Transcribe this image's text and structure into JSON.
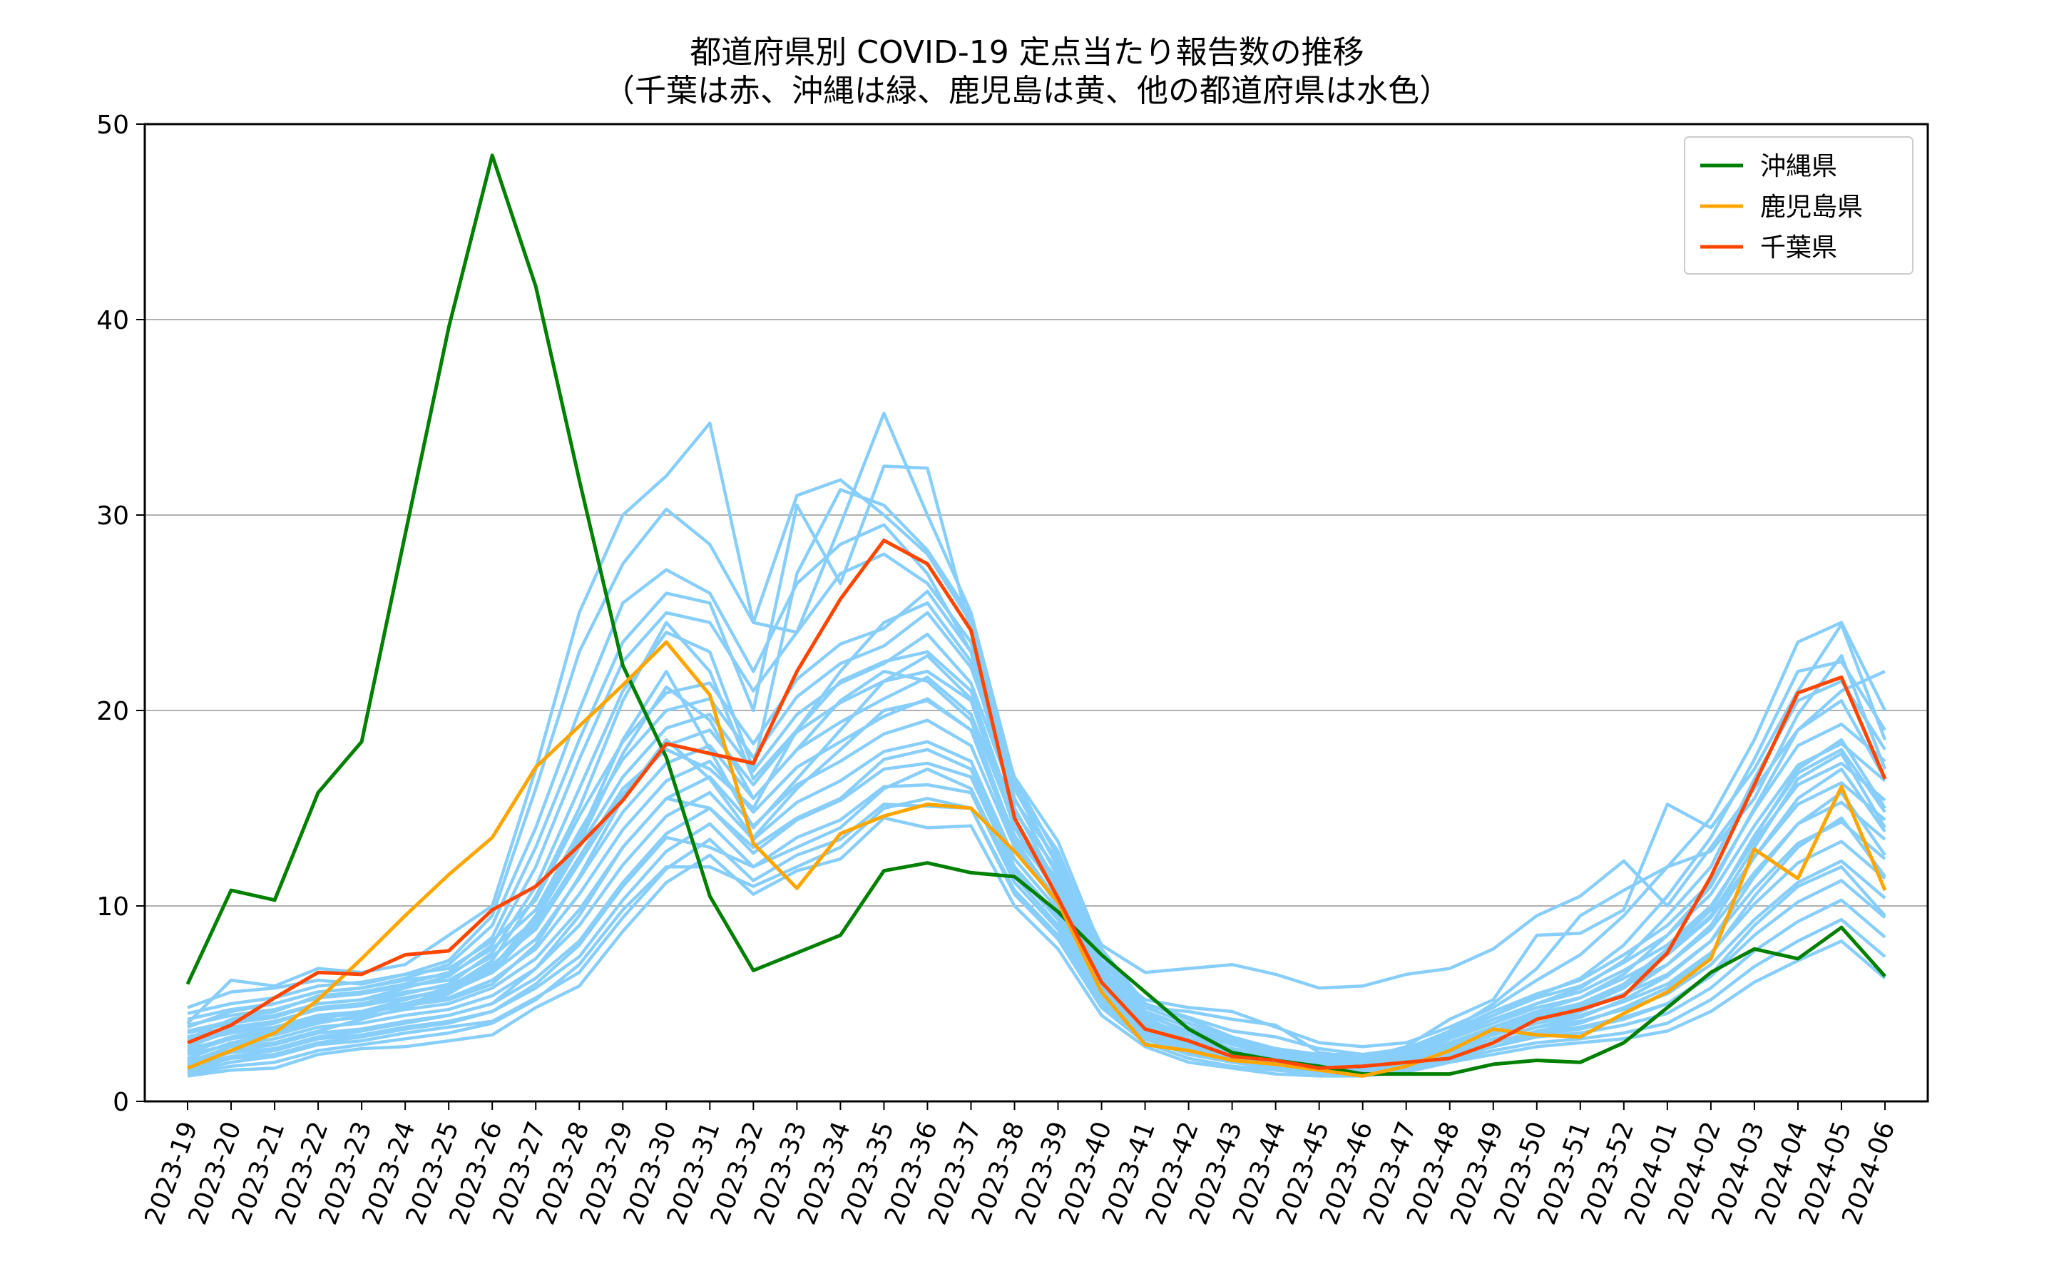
{
  "chart_data": {
    "type": "line",
    "title": "都道府県別 COVID-19 定点当たり報告数の推移",
    "subtitle": "（千葉は赤、沖縄は緑、鹿児島は黄、他の都道府県は水色）",
    "xlabel": "",
    "ylabel": "",
    "ylim": [
      0,
      50
    ],
    "yticks": [
      0,
      10,
      20,
      30,
      40,
      50
    ],
    "grid": "y",
    "legend_position": "top-right",
    "x": [
      "2023-19",
      "2023-20",
      "2023-21",
      "2023-22",
      "2023-23",
      "2023-24",
      "2023-25",
      "2023-26",
      "2023-27",
      "2023-28",
      "2023-29",
      "2023-30",
      "2023-31",
      "2023-32",
      "2023-33",
      "2023-34",
      "2023-35",
      "2023-36",
      "2023-37",
      "2023-38",
      "2023-39",
      "2023-40",
      "2023-41",
      "2023-42",
      "2023-43",
      "2023-44",
      "2023-45",
      "2023-46",
      "2023-47",
      "2023-48",
      "2023-49",
      "2023-50",
      "2023-51",
      "2023-52",
      "2024-01",
      "2024-02",
      "2024-03",
      "2024-04",
      "2024-05",
      "2024-06"
    ],
    "colors": {
      "okinawa": "#008000",
      "kagoshima": "#ffa500",
      "chiba": "#ff4500",
      "other": "#87cefa"
    },
    "highlighted_series": [
      {
        "name": "沖縄県",
        "color": "#008000",
        "values": [
          6.0,
          10.8,
          10.3,
          15.8,
          18.4,
          29.0,
          39.6,
          48.4,
          41.7,
          31.8,
          22.3,
          17.6,
          10.5,
          6.7,
          7.6,
          8.5,
          11.8,
          12.2,
          11.7,
          11.5,
          9.7,
          7.5,
          5.6,
          3.7,
          2.5,
          2.1,
          1.8,
          1.4,
          1.4,
          1.4,
          1.9,
          2.1,
          2.0,
          3.0,
          4.8,
          6.6,
          7.8,
          7.3,
          8.9,
          6.4
        ]
      },
      {
        "name": "鹿児島県",
        "color": "#ffa500",
        "values": [
          1.7,
          2.6,
          3.5,
          5.2,
          7.3,
          9.5,
          11.6,
          13.5,
          17.1,
          19.2,
          21.3,
          23.5,
          20.8,
          13.2,
          10.9,
          13.7,
          14.6,
          15.2,
          15.0,
          12.8,
          10.2,
          5.6,
          2.9,
          2.6,
          2.1,
          1.9,
          1.6,
          1.3,
          1.8,
          2.6,
          3.7,
          3.4,
          3.3,
          4.5,
          5.6,
          7.3,
          12.9,
          11.4,
          16.1,
          10.8
        ]
      },
      {
        "name": "千葉県",
        "color": "#ff4500",
        "values": [
          3.0,
          3.9,
          5.3,
          6.6,
          6.5,
          7.5,
          7.7,
          9.8,
          11.0,
          13.1,
          15.4,
          18.3,
          17.8,
          17.3,
          22.0,
          25.7,
          28.7,
          27.5,
          24.1,
          14.5,
          10.4,
          6.1,
          3.7,
          3.1,
          2.3,
          2.1,
          1.7,
          1.8,
          2.0,
          2.2,
          3.0,
          4.2,
          4.7,
          5.4,
          7.6,
          11.5,
          16.2,
          20.9,
          21.7,
          16.5
        ]
      }
    ],
    "other_prefectures": [
      [
        1.3,
        1.6,
        1.7,
        2.4,
        2.7,
        2.8,
        3.1,
        3.4,
        4.8,
        5.9,
        8.7,
        11.2,
        12.6,
        10.6,
        11.8,
        12.4,
        14.5,
        14.0,
        14.1,
        10.0,
        7.8,
        4.4,
        2.8,
        2.0,
        1.7,
        1.4,
        1.3,
        1.3,
        1.5,
        2.0,
        2.4,
        2.8,
        3.0,
        3.2,
        3.6,
        4.6,
        6.1,
        7.2,
        8.2,
        6.3
      ],
      [
        1.5,
        2.0,
        2.3,
        2.9,
        3.1,
        3.5,
        3.8,
        4.1,
        5.3,
        6.6,
        9.4,
        11.9,
        13.4,
        11.3,
        12.6,
        13.4,
        15.2,
        15.1,
        15.0,
        10.6,
        8.3,
        4.8,
        3.0,
        2.2,
        1.8,
        1.6,
        1.4,
        1.4,
        1.6,
        2.1,
        2.6,
        3.0,
        3.2,
        3.5,
        4.0,
        5.2,
        6.9,
        8.2,
        9.3,
        7.4
      ],
      [
        1.8,
        2.3,
        2.6,
        3.2,
        3.4,
        3.8,
        4.1,
        4.6,
        5.8,
        7.4,
        10.3,
        12.8,
        14.2,
        12.0,
        13.5,
        14.4,
        16.1,
        16.2,
        15.8,
        11.2,
        8.8,
        5.1,
        3.2,
        2.4,
        2.0,
        1.7,
        1.5,
        1.5,
        1.7,
        2.3,
        2.8,
        3.3,
        3.5,
        3.9,
        4.5,
        5.8,
        7.7,
        9.2,
        10.3,
        8.4
      ],
      [
        2.1,
        2.6,
        2.9,
        3.5,
        3.7,
        4.1,
        4.4,
        5.0,
        6.3,
        8.2,
        11.2,
        13.7,
        15.0,
        12.7,
        14.4,
        15.4,
        17.0,
        17.3,
        16.6,
        11.8,
        9.3,
        5.4,
        3.4,
        2.6,
        2.1,
        1.8,
        1.6,
        1.6,
        1.8,
        2.4,
        3.0,
        3.5,
        3.8,
        4.3,
        5.0,
        6.4,
        8.5,
        10.2,
        11.3,
        9.4
      ],
      [
        2.4,
        2.9,
        3.2,
        3.8,
        4.0,
        4.4,
        4.7,
        5.4,
        6.8,
        9.0,
        12.1,
        14.6,
        15.8,
        13.4,
        15.3,
        16.4,
        17.9,
        18.4,
        17.4,
        12.4,
        9.8,
        5.7,
        3.6,
        2.8,
        2.3,
        1.9,
        1.7,
        1.7,
        1.9,
        2.6,
        3.2,
        3.8,
        4.1,
        4.7,
        5.5,
        7.0,
        9.3,
        11.2,
        12.3,
        10.4
      ],
      [
        2.7,
        3.2,
        3.5,
        4.1,
        4.3,
        4.7,
        5.0,
        5.8,
        7.3,
        9.8,
        13.0,
        15.5,
        16.6,
        14.1,
        16.2,
        17.4,
        18.8,
        19.5,
        18.2,
        13.0,
        10.3,
        6.0,
        3.8,
        3.0,
        2.4,
        2.0,
        1.8,
        1.8,
        2.0,
        2.7,
        3.4,
        4.0,
        4.4,
        5.1,
        6.0,
        7.6,
        10.1,
        12.2,
        13.3,
        11.4
      ],
      [
        3.0,
        3.5,
        3.8,
        4.4,
        4.6,
        5.0,
        5.3,
        6.2,
        7.8,
        10.6,
        13.9,
        16.4,
        17.4,
        14.8,
        17.1,
        18.4,
        19.7,
        20.6,
        19.0,
        13.6,
        10.8,
        6.3,
        4.0,
        3.2,
        2.6,
        2.2,
        1.9,
        1.9,
        2.2,
        2.9,
        3.6,
        4.3,
        4.7,
        5.5,
        6.5,
        8.2,
        10.9,
        13.2,
        14.3,
        12.4
      ],
      [
        3.3,
        3.8,
        4.1,
        4.7,
        4.9,
        5.3,
        5.6,
        6.6,
        8.3,
        11.4,
        14.8,
        17.3,
        18.2,
        15.5,
        18.0,
        19.4,
        20.6,
        21.7,
        19.8,
        14.2,
        11.3,
        6.6,
        4.2,
        3.4,
        2.7,
        2.3,
        2.0,
        2.0,
        2.3,
        3.0,
        3.8,
        4.5,
        5.0,
        5.9,
        7.0,
        8.8,
        11.7,
        14.2,
        15.3,
        13.4
      ],
      [
        3.6,
        4.1,
        4.4,
        5.0,
        5.2,
        5.6,
        5.9,
        7.0,
        8.8,
        12.2,
        15.7,
        18.2,
        19.0,
        16.2,
        18.9,
        20.4,
        21.5,
        22.8,
        20.6,
        14.8,
        11.8,
        6.9,
        4.4,
        3.6,
        2.9,
        2.4,
        2.1,
        2.1,
        2.4,
        3.2,
        4.0,
        4.8,
        5.3,
        6.3,
        7.5,
        9.4,
        12.5,
        15.2,
        16.3,
        14.4
      ],
      [
        3.9,
        4.4,
        4.7,
        5.3,
        5.5,
        5.9,
        6.2,
        7.4,
        9.3,
        13.0,
        16.6,
        19.1,
        19.8,
        16.9,
        19.8,
        21.4,
        22.4,
        23.9,
        21.4,
        15.4,
        12.3,
        7.2,
        4.6,
        3.8,
        3.0,
        2.5,
        2.2,
        2.2,
        2.5,
        3.3,
        4.2,
        5.0,
        5.6,
        6.7,
        8.0,
        10.0,
        13.3,
        16.2,
        17.3,
        15.4
      ],
      [
        4.2,
        4.7,
        5.0,
        5.6,
        5.8,
        6.2,
        6.5,
        7.8,
        9.8,
        13.8,
        17.5,
        20.0,
        20.6,
        17.6,
        20.7,
        22.4,
        23.3,
        25.0,
        22.2,
        16.0,
        12.8,
        7.5,
        4.8,
        4.0,
        3.2,
        2.6,
        2.3,
        2.3,
        2.6,
        3.5,
        4.4,
        5.3,
        5.9,
        7.1,
        8.5,
        10.6,
        14.1,
        17.2,
        18.3,
        16.4
      ],
      [
        4.5,
        5.0,
        5.3,
        5.9,
        6.1,
        6.5,
        6.8,
        8.2,
        10.3,
        14.6,
        18.4,
        20.9,
        21.4,
        18.3,
        21.6,
        23.4,
        24.2,
        26.1,
        23.0,
        16.6,
        13.3,
        7.8,
        5.0,
        4.2,
        3.3,
        2.7,
        2.4,
        2.4,
        2.7,
        3.6,
        4.6,
        5.5,
        6.2,
        7.5,
        9.0,
        11.2,
        14.9,
        18.2,
        19.3,
        17.4
      ],
      [
        2.0,
        2.8,
        3.0,
        3.6,
        4.2,
        4.8,
        5.5,
        6.8,
        9.5,
        13.5,
        18.5,
        22.0,
        18.0,
        14.0,
        16.5,
        19.0,
        21.5,
        22.0,
        20.5,
        14.0,
        10.5,
        6.0,
        4.0,
        3.0,
        2.5,
        2.2,
        1.9,
        1.8,
        2.1,
        2.8,
        3.5,
        4.2,
        4.8,
        5.8,
        7.5,
        9.5,
        13.0,
        16.5,
        17.8,
        14.0
      ],
      [
        2.5,
        3.2,
        3.6,
        4.2,
        4.6,
        5.2,
        5.8,
        7.2,
        10.5,
        15.0,
        20.5,
        24.5,
        22.0,
        16.5,
        19.0,
        22.0,
        24.5,
        25.5,
        22.5,
        15.0,
        11.0,
        6.4,
        4.3,
        3.2,
        2.7,
        2.3,
        2.0,
        1.9,
        2.2,
        3.0,
        3.8,
        4.6,
        5.3,
        6.5,
        8.5,
        11.0,
        15.0,
        19.0,
        20.5,
        16.5
      ],
      [
        3.5,
        4.0,
        4.3,
        5.0,
        5.2,
        5.8,
        6.4,
        8.0,
        12.0,
        17.5,
        22.5,
        25.0,
        24.5,
        21.0,
        24.0,
        27.0,
        28.0,
        26.5,
        23.5,
        15.5,
        11.5,
        6.8,
        4.5,
        3.5,
        2.9,
        2.5,
        2.1,
        2.0,
        2.3,
        3.2,
        4.0,
        5.0,
        5.8,
        7.2,
        9.5,
        12.0,
        16.5,
        20.5,
        21.5,
        18.0
      ],
      [
        3.8,
        4.6,
        5.0,
        5.6,
        5.8,
        6.3,
        7.0,
        9.0,
        14.0,
        20.0,
        25.5,
        27.2,
        26.0,
        22.0,
        26.5,
        28.5,
        29.5,
        27.0,
        23.0,
        15.0,
        11.0,
        6.5,
        4.6,
        3.8,
        3.1,
        2.6,
        2.2,
        2.1,
        2.5,
        3.4,
        4.4,
        5.4,
        6.3,
        8.0,
        10.5,
        13.5,
        17.5,
        22.0,
        22.5,
        19.0
      ],
      [
        4.8,
        5.6,
        5.8,
        6.2,
        6.0,
        6.5,
        7.2,
        9.5,
        16.0,
        23.0,
        27.5,
        30.3,
        28.5,
        24.5,
        31.0,
        31.8,
        30.0,
        28.0,
        24.5,
        16.0,
        12.0,
        7.0,
        5.2,
        4.8,
        4.6,
        3.8,
        3.0,
        2.8,
        3.0,
        3.8,
        4.8,
        6.2,
        7.5,
        9.5,
        12.0,
        14.5,
        18.5,
        23.5,
        24.5,
        20.0
      ],
      [
        4.0,
        6.2,
        5.9,
        6.8,
        6.6,
        7.0,
        8.5,
        10.0,
        17.0,
        25.0,
        30.0,
        32.0,
        34.7,
        24.5,
        24.0,
        29.5,
        35.2,
        30.0,
        25.0,
        16.5,
        12.5,
        8.0,
        6.6,
        6.8,
        7.0,
        6.5,
        5.8,
        5.9,
        6.5,
        6.8,
        7.8,
        9.5,
        10.5,
        12.3,
        10.0,
        13.0,
        16.0,
        19.0,
        21.0,
        22.0
      ],
      [
        3.2,
        4.2,
        4.6,
        5.4,
        5.6,
        6.0,
        6.6,
        8.4,
        13.0,
        18.5,
        23.5,
        26.0,
        25.5,
        20.0,
        30.5,
        26.5,
        32.5,
        32.4,
        24.0,
        15.5,
        11.5,
        6.8,
        4.8,
        4.6,
        4.2,
        3.9,
        2.5,
        2.2,
        2.8,
        4.2,
        5.2,
        8.5,
        8.6,
        9.8,
        15.2,
        14.0,
        17.0,
        21.0,
        24.4,
        18.5
      ],
      [
        2.8,
        3.6,
        4.0,
        4.8,
        5.0,
        5.5,
        6.0,
        7.6,
        11.0,
        16.0,
        21.0,
        24.0,
        23.0,
        17.0,
        27.0,
        31.3,
        30.5,
        28.2,
        24.8,
        16.2,
        12.0,
        7.2,
        5.0,
        4.3,
        3.6,
        3.3,
        2.7,
        2.4,
        2.6,
        3.6,
        5.0,
        6.8,
        9.5,
        10.8,
        12.0,
        12.8,
        15.5,
        19.8,
        22.8,
        17.0
      ],
      [
        2.2,
        3.0,
        3.4,
        4.0,
        4.4,
        5.0,
        5.6,
        6.6,
        9.0,
        12.5,
        16.0,
        18.0,
        17.0,
        15.0,
        19.0,
        21.5,
        22.5,
        23.0,
        21.0,
        14.5,
        10.8,
        6.2,
        4.2,
        3.2,
        2.6,
        2.3,
        2.0,
        1.9,
        2.2,
        2.9,
        3.6,
        4.4,
        5.0,
        6.0,
        7.8,
        9.8,
        13.5,
        17.0,
        18.5,
        15.0
      ],
      [
        1.6,
        2.2,
        2.4,
        3.0,
        3.3,
        3.7,
        4.0,
        4.6,
        6.0,
        8.0,
        11.0,
        13.5,
        13.0,
        12.0,
        13.0,
        14.0,
        16.0,
        17.0,
        16.0,
        11.5,
        9.0,
        5.2,
        3.5,
        2.7,
        2.2,
        1.9,
        1.7,
        1.6,
        1.8,
        2.4,
        3.0,
        3.6,
        4.0,
        4.8,
        5.8,
        7.5,
        10.5,
        13.0,
        14.5,
        11.5
      ],
      [
        1.9,
        2.5,
        2.7,
        3.3,
        3.6,
        4.0,
        4.4,
        5.0,
        6.8,
        9.5,
        13.0,
        15.5,
        15.0,
        13.0,
        14.5,
        15.5,
        17.5,
        18.0,
        17.0,
        12.0,
        9.5,
        5.5,
        3.7,
        2.9,
        2.3,
        2.0,
        1.8,
        1.7,
        1.9,
        2.5,
        3.2,
        3.8,
        4.3,
        5.2,
        6.4,
        8.2,
        11.5,
        14.2,
        15.8,
        12.6
      ],
      [
        2.6,
        3.3,
        3.7,
        4.3,
        4.5,
        4.9,
        5.2,
        6.0,
        8.0,
        11.5,
        15.5,
        18.5,
        16.5,
        13.5,
        16.0,
        18.0,
        20.0,
        20.5,
        19.0,
        13.2,
        10.0,
        5.8,
        3.9,
        3.1,
        2.5,
        2.1,
        1.9,
        1.8,
        2.0,
        2.7,
        3.4,
        4.0,
        4.6,
        5.5,
        7.0,
        9.0,
        12.5,
        15.5,
        17.0,
        13.8
      ],
      [
        1.4,
        1.8,
        2.0,
        2.6,
        2.9,
        3.2,
        3.5,
        4.0,
        5.2,
        7.0,
        9.8,
        12.0,
        12.0,
        11.0,
        12.0,
        13.0,
        15.0,
        15.5,
        15.0,
        10.8,
        8.5,
        4.9,
        3.3,
        2.5,
        2.0,
        1.8,
        1.6,
        1.5,
        1.7,
        2.2,
        2.8,
        3.4,
        3.7,
        4.2,
        5.0,
        6.5,
        9.0,
        11.0,
        12.0,
        9.5
      ],
      [
        3.1,
        3.7,
        4.1,
        4.7,
        4.9,
        5.3,
        5.7,
        6.9,
        9.2,
        13.2,
        17.8,
        21.2,
        19.5,
        15.5,
        18.0,
        20.5,
        22.0,
        21.5,
        19.5,
        13.4,
        10.2,
        6.0,
        4.0,
        3.2,
        2.6,
        2.2,
        1.9,
        1.8,
        2.1,
        2.8,
        3.6,
        4.3,
        4.9,
        5.9,
        7.6,
        9.8,
        13.6,
        16.8,
        18.0,
        14.8
      ]
    ]
  }
}
